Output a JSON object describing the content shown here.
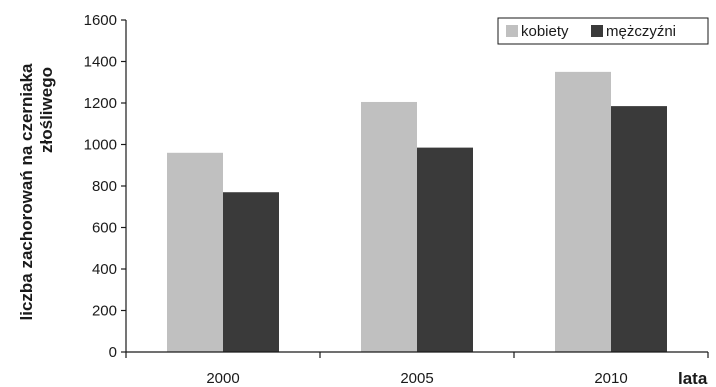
{
  "chart_data": {
    "type": "bar",
    "categories": [
      "2000",
      "2005",
      "2010"
    ],
    "series": [
      {
        "name": "kobiety",
        "values": [
          960,
          1205,
          1350
        ],
        "color": "#c0c0c0"
      },
      {
        "name": "mężczyźni",
        "values": [
          770,
          985,
          1185
        ],
        "color": "#3a3a3a"
      }
    ],
    "xlabel": "lata",
    "ylabel_lines": [
      "liczba zachorowań na czerniaka",
      "złośliwego"
    ],
    "ylim": [
      0,
      1600
    ],
    "yticks": [
      0,
      200,
      400,
      600,
      800,
      1000,
      1200,
      1400,
      1600
    ],
    "grid": false,
    "legend_position": "top-right"
  }
}
